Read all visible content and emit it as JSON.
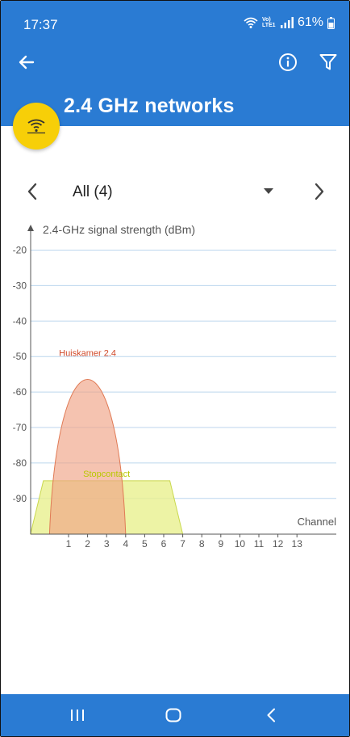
{
  "status_bar": {
    "time": "17:37",
    "network_label": "Vo) LTE1",
    "battery": "61%"
  },
  "app_bar": {
    "title": "2.4 GHz networks",
    "icons": [
      "back-arrow-icon",
      "info-icon",
      "filter-icon"
    ]
  },
  "fab": {
    "icon": "wifi-signal-icon"
  },
  "selector": {
    "value": "All (4)"
  },
  "chart_data": {
    "type": "area",
    "ylabel": "2.4-GHz signal strength (dBm)",
    "xlabel": "Channel",
    "x_ticks": [
      1,
      2,
      3,
      4,
      5,
      6,
      7,
      8,
      9,
      10,
      11,
      12,
      13
    ],
    "y_ticks": [
      -20,
      -30,
      -40,
      -50,
      -60,
      -70,
      -80,
      -90
    ],
    "ylim": [
      -100,
      -20
    ],
    "grid": true,
    "series": [
      {
        "name": "Huiskamer 2.4",
        "center_channel": 2,
        "width_channels": 4,
        "signal_dbm": -51,
        "shape": "arc",
        "fill": "#f0a385",
        "stroke": "#e07a55",
        "label_color": "#d14a2a"
      },
      {
        "name": "Stopcontact",
        "center_channel": 3,
        "width_channels": 8,
        "signal_dbm": -85,
        "shape": "trapezoid",
        "fill": "#e8f08f",
        "stroke": "#c9d84d",
        "label_color": "#b9c800"
      }
    ]
  },
  "colors": {
    "primary": "#2a7bd3",
    "accent": "#f7cf08",
    "grid": "#bcd6ee"
  }
}
